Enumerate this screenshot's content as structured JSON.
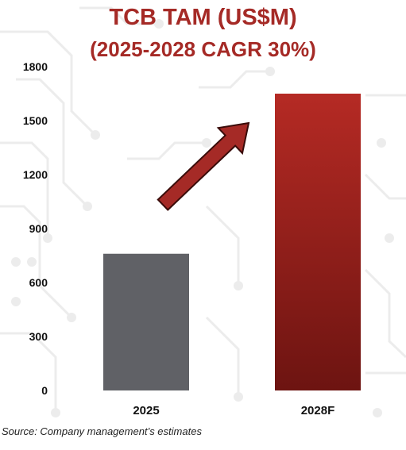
{
  "title": "TCB TAM (US$M)",
  "subtitle": "(2025-2028 CAGR 30%)",
  "source": "Source: Company management’s estimates",
  "colors": {
    "title": "#a52a26",
    "bar_2025": "#606166",
    "bar_2028_top": "#b52a24",
    "bar_2028_bottom": "#6d1411",
    "arrow": "#a52a26"
  },
  "chart_data": {
    "type": "bar",
    "categories": [
      "2025",
      "2028F"
    ],
    "values": [
      760,
      1650
    ],
    "title": "TCB TAM (US$M)",
    "subtitle": "(2025-2028 CAGR 30%)",
    "xlabel": "",
    "ylabel": "",
    "ylim": [
      0,
      1800
    ],
    "yticks": [
      "0",
      "300",
      "600",
      "900",
      "1200",
      "1500",
      "1800"
    ],
    "grid": false,
    "legend": "none",
    "annotation": "arrow-up-right"
  }
}
